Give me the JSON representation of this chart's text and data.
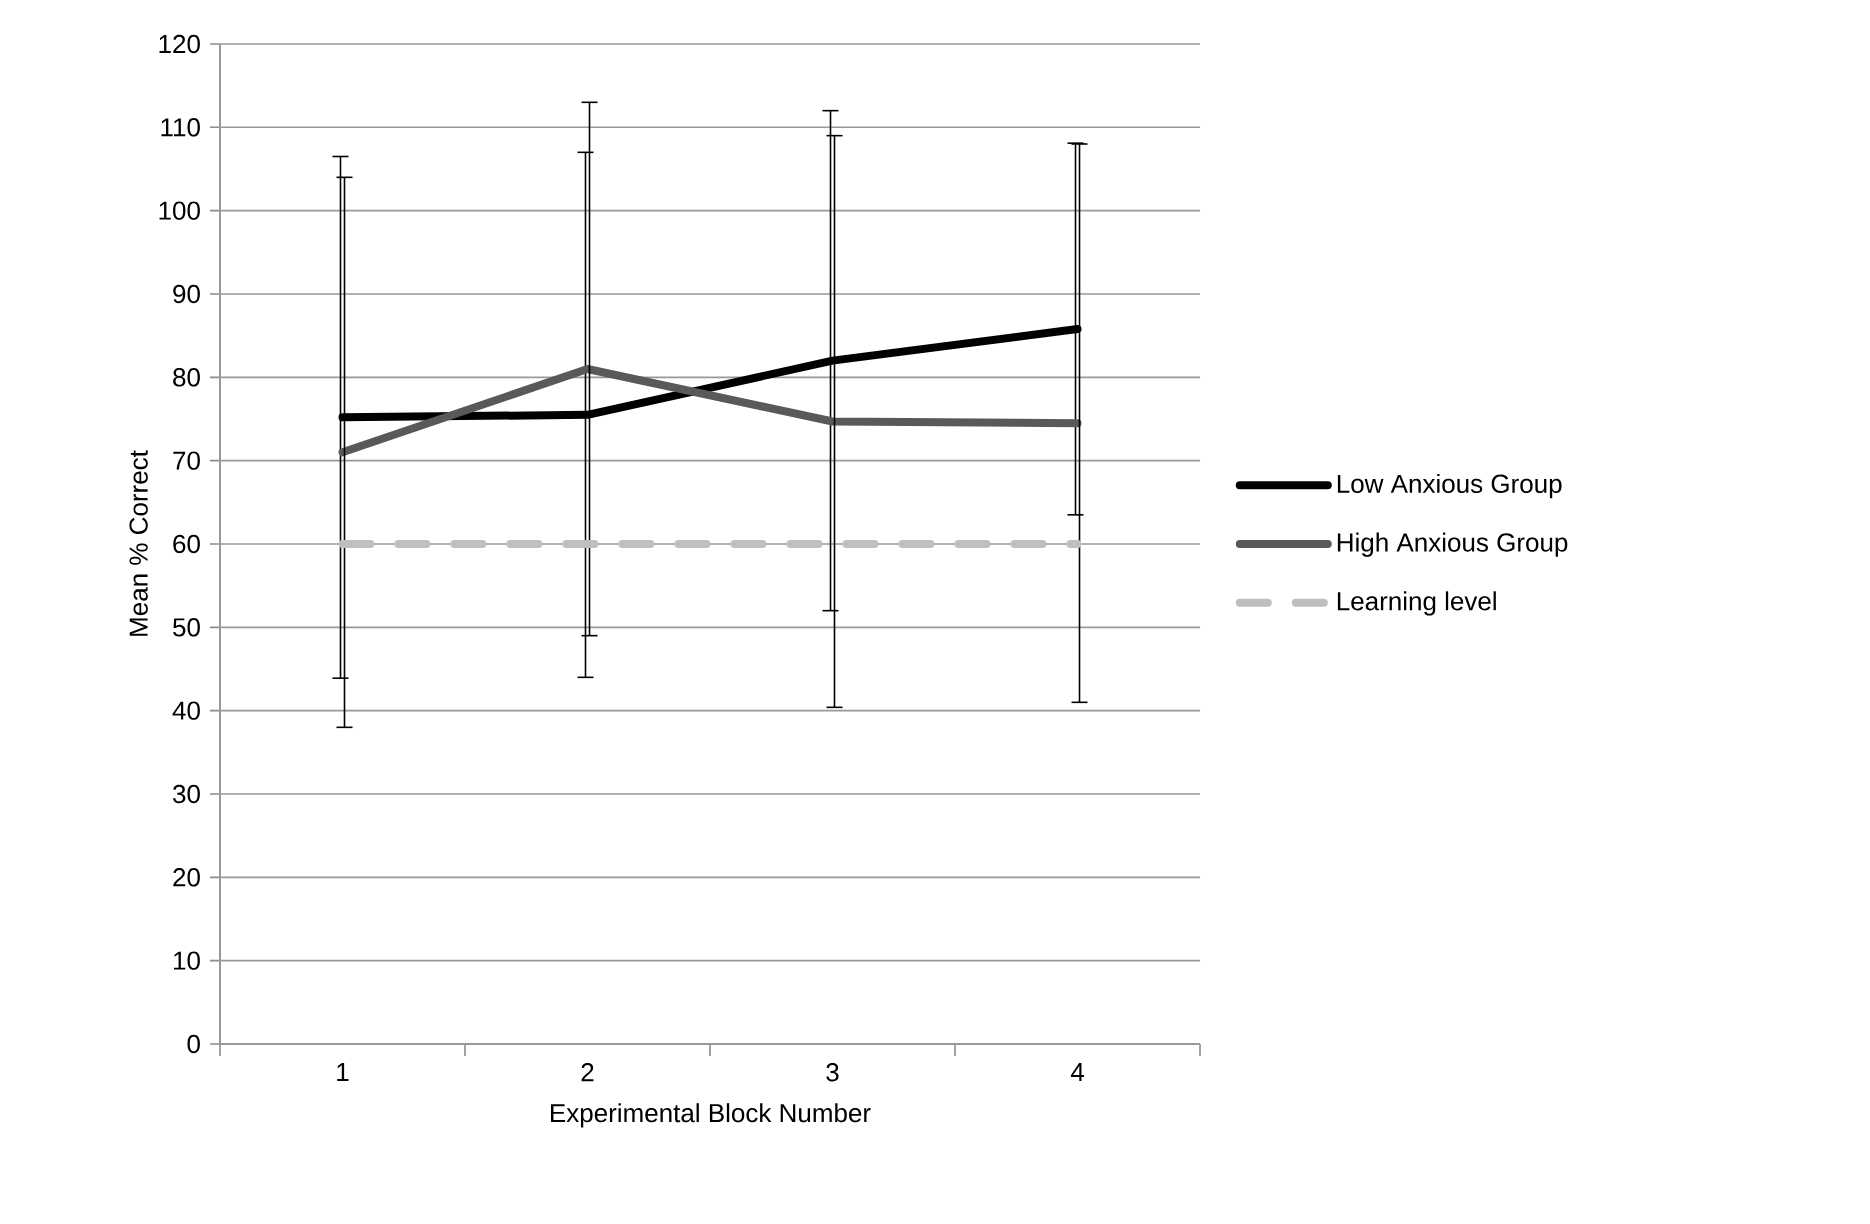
{
  "chart_data": {
    "type": "line",
    "xlabel": "Experimental Block Number",
    "ylabel": "Mean % Correct",
    "categories": [
      "1",
      "2",
      "3",
      "4"
    ],
    "series": [
      {
        "name": "Low Anxious Group",
        "color": "#000000",
        "values": [
          75.2,
          75.5,
          82,
          85.8
        ],
        "errors": [
          31.3,
          31.5,
          30,
          22.3
        ],
        "line_style": "solid"
      },
      {
        "name": "High Anxious Group",
        "color": "#595959",
        "values": [
          71,
          81,
          74.7,
          74.5
        ],
        "errors": [
          33,
          32,
          34.3,
          33.5
        ],
        "line_style": "solid"
      },
      {
        "name": "Learning level",
        "color": "#bfbfbf",
        "values": [
          60,
          60,
          60,
          60
        ],
        "line_style": "dashed"
      }
    ],
    "ylim": [
      0,
      120
    ],
    "yticks": [
      0,
      10,
      20,
      30,
      40,
      50,
      60,
      70,
      80,
      90,
      100,
      110,
      120
    ],
    "grid": "y",
    "legend": "right",
    "marker": "none"
  }
}
